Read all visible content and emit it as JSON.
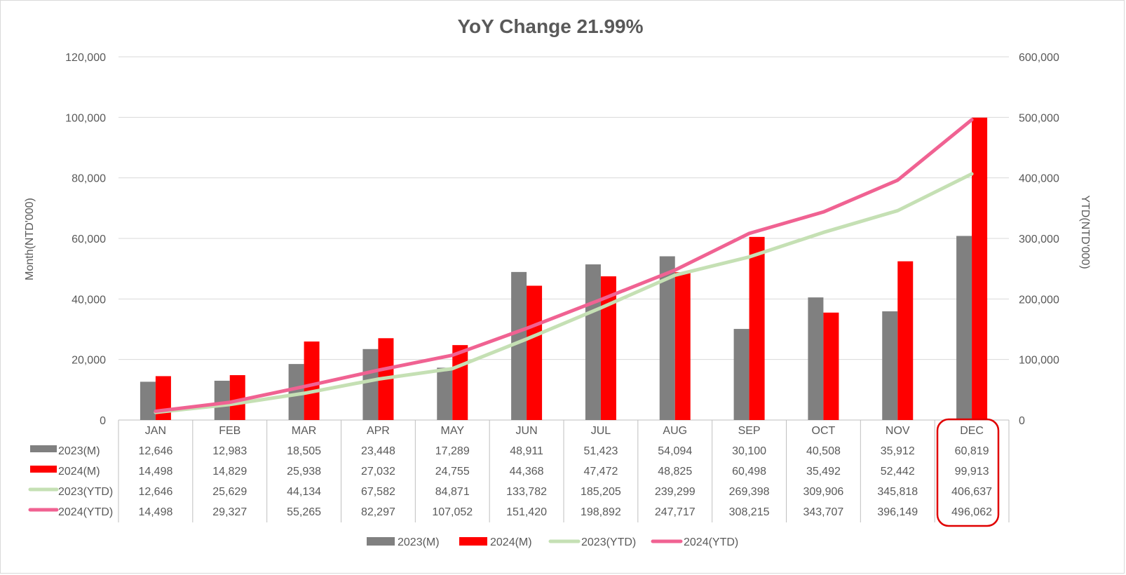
{
  "chart_data": {
    "type": "bar",
    "title": "YoY Change  21.99%",
    "categories": [
      "JAN",
      "FEB",
      "MAR",
      "APR",
      "MAY",
      "JUN",
      "JUL",
      "AUG",
      "SEP",
      "OCT",
      "NOV",
      "DEC"
    ],
    "ylabel": "Month(NTD'000)",
    "y2label": "YTD(NTD'000)",
    "ylim": [
      0,
      120000
    ],
    "y2lim": [
      0,
      600000
    ],
    "yticks": [
      "0",
      "20,000",
      "40,000",
      "60,000",
      "80,000",
      "100,000",
      "120,000"
    ],
    "y2ticks": [
      "0",
      "100,000",
      "200,000",
      "300,000",
      "400,000",
      "500,000",
      "600,000"
    ],
    "grid": true,
    "legend_position": "bottom",
    "highlight_category": "DEC",
    "series": [
      {
        "name": "2023(M)",
        "kind": "bar",
        "axis": "left",
        "color": "#808080",
        "values": [
          12646,
          12983,
          18505,
          23448,
          17289,
          48911,
          51423,
          54094,
          30100,
          40508,
          35912,
          60819
        ],
        "labels": [
          "12,646",
          "12,983",
          "18,505",
          "23,448",
          "17,289",
          "48,911",
          "51,423",
          "54,094",
          "30,100",
          "40,508",
          "35,912",
          "60,819"
        ]
      },
      {
        "name": "2024(M)",
        "kind": "bar",
        "axis": "left",
        "color": "#ff0000",
        "values": [
          14498,
          14829,
          25938,
          27032,
          24755,
          44368,
          47472,
          48825,
          60498,
          35492,
          52442,
          99913
        ],
        "labels": [
          "14,498",
          "14,829",
          "25,938",
          "27,032",
          "24,755",
          "44,368",
          "47,472",
          "48,825",
          "60,498",
          "35,492",
          "52,442",
          "99,913"
        ]
      },
      {
        "name": "2023(YTD)",
        "kind": "line",
        "axis": "right",
        "color": "#c5e0b4",
        "values": [
          12646,
          25629,
          44134,
          67582,
          84871,
          133782,
          185205,
          239299,
          269398,
          309906,
          345818,
          406637
        ],
        "labels": [
          "12,646",
          "25,629",
          "44,134",
          "67,582",
          "84,871",
          "133,782",
          "185,205",
          "239,299",
          "269,398",
          "309,906",
          "345,818",
          "406,637"
        ]
      },
      {
        "name": "2024(YTD)",
        "kind": "line",
        "axis": "right",
        "color": "#f06292",
        "values": [
          14498,
          29327,
          55265,
          82297,
          107052,
          151420,
          198892,
          247717,
          308215,
          343707,
          396149,
          496062
        ],
        "labels": [
          "14,498",
          "29,327",
          "55,265",
          "82,297",
          "107,052",
          "151,420",
          "198,892",
          "247,717",
          "308,215",
          "343,707",
          "396,149",
          "496,062"
        ]
      }
    ]
  }
}
